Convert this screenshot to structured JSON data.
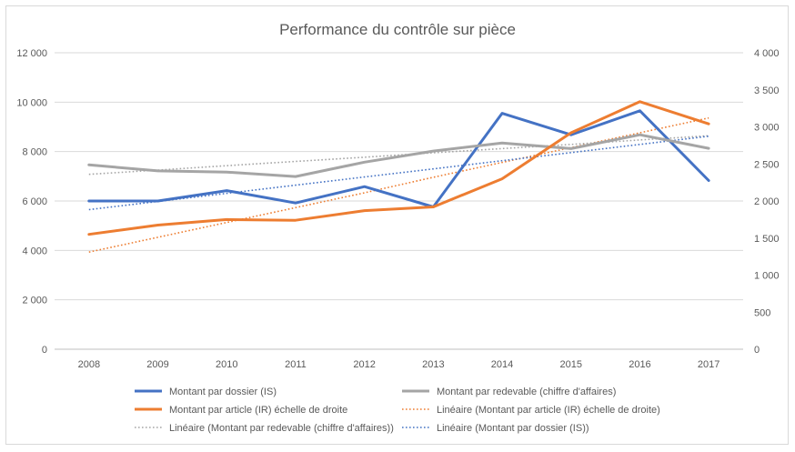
{
  "chart_data": {
    "type": "line",
    "title": "Performance du contrôle sur pièce",
    "xlabel": "",
    "ylabel": "",
    "categories": [
      "2008",
      "2009",
      "2010",
      "2011",
      "2012",
      "2013",
      "2014",
      "2015",
      "2016",
      "2017"
    ],
    "ylim": [
      0,
      12000
    ],
    "y_ticks": [
      "0",
      "2 000",
      "4 000",
      "6 000",
      "8 000",
      "10 000",
      "12 000"
    ],
    "y2lim": [
      0,
      4000
    ],
    "y2_ticks": [
      "0",
      "500",
      "1 000",
      "1 500",
      "2 000",
      "2 500",
      "3 000",
      "3 500",
      "4 000"
    ],
    "grid": true,
    "legend_position": "bottom",
    "series": [
      {
        "name": "Montant par dossier (IS)",
        "axis": "left",
        "color": "#4472c4",
        "style": "solid",
        "values": [
          6000,
          6000,
          6420,
          5920,
          6580,
          5760,
          9550,
          8680,
          9650,
          6830
        ]
      },
      {
        "name": "Montant par redevable (chiffre d'affaires)",
        "axis": "left",
        "color": "#a5a5a5",
        "style": "solid",
        "values": [
          7460,
          7220,
          7170,
          6990,
          7570,
          8020,
          8350,
          8120,
          8680,
          8130
        ]
      },
      {
        "name": "Montant par article (IR) échelle de droite",
        "axis": "right",
        "color": "#ed7d31",
        "style": "solid",
        "values": [
          1550,
          1675,
          1750,
          1740,
          1870,
          1920,
          2300,
          2920,
          3340,
          3040
        ]
      },
      {
        "name": "Linéaire (Montant par article (IR) échelle de droite)",
        "axis": "right",
        "color": "#ed7d31",
        "style": "dotted",
        "values": [
          1310,
          1510,
          1710,
          1910,
          2110,
          2320,
          2520,
          2720,
          2920,
          3120
        ]
      },
      {
        "name": "Linéaire (Montant par redevable (chiffre d'affaires))",
        "axis": "left",
        "color": "#a5a5a5",
        "style": "dotted",
        "values": [
          7080,
          7250,
          7430,
          7600,
          7770,
          7950,
          8120,
          8290,
          8470,
          8640
        ]
      },
      {
        "name": "Linéaire (Montant par dossier (IS))",
        "axis": "left",
        "color": "#4472c4",
        "style": "dotted",
        "values": [
          5650,
          5980,
          6310,
          6640,
          6970,
          7300,
          7630,
          7960,
          8290,
          8620
        ]
      }
    ]
  }
}
